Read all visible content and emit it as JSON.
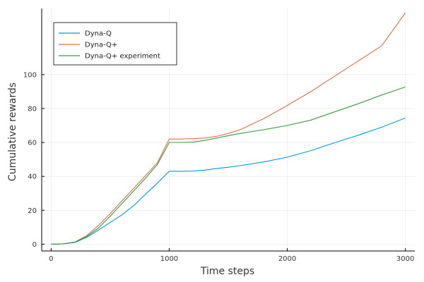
{
  "chart_data": {
    "type": "line",
    "title": "",
    "xlabel": "Time steps",
    "ylabel": "Cumulative rewards",
    "xlim": [
      -80,
      3080
    ],
    "ylim": [
      -4,
      139
    ],
    "x_ticks": [
      0,
      1000,
      2000,
      3000
    ],
    "y_ticks": [
      0,
      20,
      40,
      60,
      80,
      100
    ],
    "grid": true,
    "legend": {
      "position": "top-left"
    },
    "series": [
      {
        "name": "Dyna-Q",
        "color": "#0099dd",
        "points": [
          [
            0,
            0
          ],
          [
            100,
            0.2
          ],
          [
            200,
            1
          ],
          [
            300,
            4
          ],
          [
            400,
            8.3
          ],
          [
            500,
            12.8
          ],
          [
            600,
            17.3
          ],
          [
            700,
            22.8
          ],
          [
            800,
            29.5
          ],
          [
            900,
            36
          ],
          [
            1000,
            43
          ],
          [
            1100,
            43
          ],
          [
            1200,
            43.1
          ],
          [
            1300,
            43.7
          ],
          [
            1400,
            44.6
          ],
          [
            1500,
            45.4
          ],
          [
            1600,
            46.3
          ],
          [
            1800,
            48.5
          ],
          [
            2000,
            51.3
          ],
          [
            2200,
            55.2
          ],
          [
            2400,
            59.8
          ],
          [
            2600,
            64.2
          ],
          [
            2800,
            69
          ],
          [
            3000,
            74.4
          ]
        ]
      },
      {
        "name": "Dyna-Q+",
        "color": "#e26f46",
        "points": [
          [
            0,
            0
          ],
          [
            100,
            0.2
          ],
          [
            200,
            1.3
          ],
          [
            300,
            5
          ],
          [
            400,
            11
          ],
          [
            500,
            18
          ],
          [
            600,
            25.5
          ],
          [
            700,
            33
          ],
          [
            800,
            40.5
          ],
          [
            900,
            48
          ],
          [
            1000,
            62
          ],
          [
            1100,
            62
          ],
          [
            1200,
            62.2
          ],
          [
            1300,
            62.6
          ],
          [
            1400,
            63.6
          ],
          [
            1500,
            65.3
          ],
          [
            1600,
            67.5
          ],
          [
            1800,
            74
          ],
          [
            2000,
            81.8
          ],
          [
            2200,
            90
          ],
          [
            2400,
            99
          ],
          [
            2600,
            108
          ],
          [
            2800,
            117
          ],
          [
            3000,
            136.5
          ]
        ]
      },
      {
        "name": "Dyna-Q+ experiment",
        "color": "#3a9b46",
        "points": [
          [
            0,
            0
          ],
          [
            100,
            0.2
          ],
          [
            200,
            1.2
          ],
          [
            300,
            4.5
          ],
          [
            400,
            9.5
          ],
          [
            500,
            16.5
          ],
          [
            600,
            24
          ],
          [
            700,
            31.5
          ],
          [
            800,
            39
          ],
          [
            900,
            47
          ],
          [
            1000,
            60
          ],
          [
            1100,
            60
          ],
          [
            1200,
            60.2
          ],
          [
            1300,
            61.2
          ],
          [
            1400,
            62.6
          ],
          [
            1500,
            64
          ],
          [
            1600,
            65.3
          ],
          [
            1800,
            67.5
          ],
          [
            2000,
            70
          ],
          [
            2200,
            73.2
          ],
          [
            2400,
            78
          ],
          [
            2600,
            82.8
          ],
          [
            2800,
            88
          ],
          [
            3000,
            92.7
          ]
        ]
      }
    ]
  }
}
